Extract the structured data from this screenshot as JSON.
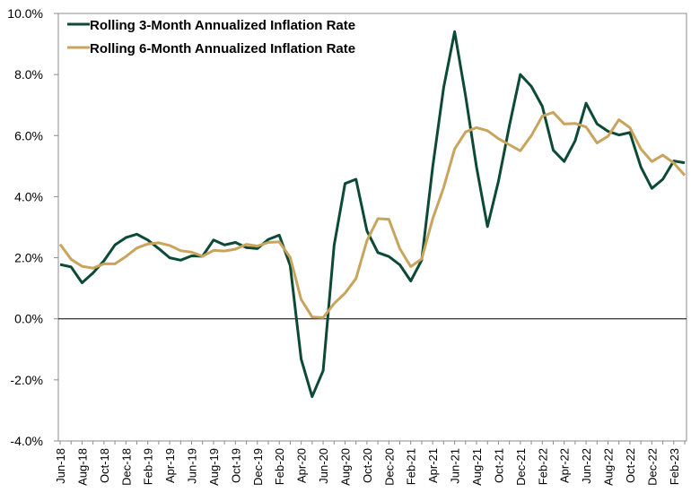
{
  "chart_data": {
    "type": "line",
    "title": "",
    "xlabel": "",
    "ylabel": "",
    "ylim": [
      -4.0,
      10.0
    ],
    "yticks": [
      "10.0%",
      "8.0%",
      "6.0%",
      "4.0%",
      "2.0%",
      "0.0%",
      "-2.0%",
      "-4.0%"
    ],
    "ytick_values": [
      10,
      8,
      6,
      4,
      2,
      0,
      -2,
      -4
    ],
    "x": [
      "Jun-18",
      "Jul-18",
      "Aug-18",
      "Sep-18",
      "Oct-18",
      "Nov-18",
      "Dec-18",
      "Jan-19",
      "Feb-19",
      "Mar-19",
      "Apr-19",
      "May-19",
      "Jun-19",
      "Jul-19",
      "Aug-19",
      "Sep-19",
      "Oct-19",
      "Nov-19",
      "Dec-19",
      "Jan-20",
      "Feb-20",
      "Mar-20",
      "Apr-20",
      "May-20",
      "Jun-20",
      "Jul-20",
      "Aug-20",
      "Sep-20",
      "Oct-20",
      "Nov-20",
      "Dec-20",
      "Jan-21",
      "Feb-21",
      "Mar-21",
      "Apr-21",
      "May-21",
      "Jun-21",
      "Jul-21",
      "Aug-21",
      "Sep-21",
      "Oct-21",
      "Nov-21",
      "Dec-21",
      "Jan-22",
      "Feb-22",
      "Mar-22",
      "Apr-22",
      "May-22",
      "Jun-22",
      "Jul-22",
      "Aug-22",
      "Sep-22",
      "Oct-22",
      "Nov-22",
      "Dec-22",
      "Jan-23",
      "Feb-23",
      "Mar-23"
    ],
    "xtick_labels": [
      "Jun-18",
      "Aug-18",
      "Oct-18",
      "Dec-18",
      "Feb-19",
      "Apr-19",
      "Jun-19",
      "Aug-19",
      "Oct-19",
      "Dec-19",
      "Feb-20",
      "Apr-20",
      "Jun-20",
      "Aug-20",
      "Oct-20",
      "Dec-20",
      "Feb-21",
      "Apr-21",
      "Jun-21",
      "Aug-21",
      "Oct-21",
      "Dec-21",
      "Feb-22",
      "Apr-22",
      "Jun-22",
      "Aug-22",
      "Oct-22",
      "Dec-22",
      "Feb-23"
    ],
    "legend_position": "top-left",
    "grid": false,
    "series": [
      {
        "name": "Rolling 3-Month Annualized Inflation Rate",
        "color": "#0d4a35",
        "values": [
          1.78,
          1.7,
          1.18,
          1.5,
          1.9,
          2.42,
          2.66,
          2.77,
          2.58,
          2.3,
          2.0,
          1.92,
          2.06,
          2.05,
          2.58,
          2.42,
          2.5,
          2.33,
          2.3,
          2.6,
          2.74,
          1.74,
          -1.32,
          -2.55,
          -1.7,
          2.4,
          4.43,
          4.57,
          2.88,
          2.17,
          2.04,
          1.77,
          1.24,
          1.92,
          4.98,
          7.58,
          9.4,
          7.3,
          4.97,
          3.02,
          4.5,
          6.32,
          8.0,
          7.61,
          6.96,
          5.52,
          5.15,
          5.83,
          7.06,
          6.38,
          6.14,
          6.02,
          6.1,
          4.97,
          4.27,
          4.57,
          5.17,
          5.11
        ]
      },
      {
        "name": "Rolling 6-Month Annualized Inflation Rate",
        "color": "#c8a45d",
        "values": [
          2.44,
          1.95,
          1.72,
          1.66,
          1.8,
          1.8,
          2.04,
          2.32,
          2.45,
          2.49,
          2.4,
          2.23,
          2.18,
          2.05,
          2.24,
          2.22,
          2.28,
          2.44,
          2.38,
          2.5,
          2.52,
          2.01,
          0.63,
          0.06,
          0.04,
          0.5,
          0.84,
          1.32,
          2.56,
          3.28,
          3.26,
          2.3,
          1.71,
          1.96,
          3.28,
          4.3,
          5.56,
          6.12,
          6.26,
          6.16,
          5.9,
          5.7,
          5.5,
          6.0,
          6.64,
          6.76,
          6.38,
          6.4,
          6.28,
          5.76,
          5.98,
          6.52,
          6.26,
          5.56,
          5.15,
          5.36,
          5.1,
          4.7
        ]
      }
    ]
  }
}
